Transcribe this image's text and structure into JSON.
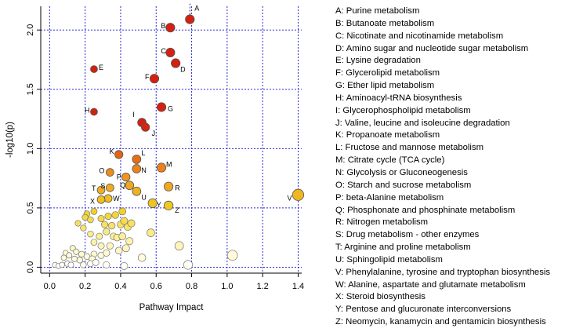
{
  "chart_data": {
    "type": "scatter",
    "xlabel": "Pathway Impact",
    "ylabel": "-log10(p)",
    "xlim": [
      -0.05,
      1.42
    ],
    "ylim": [
      -0.05,
      2.2
    ],
    "xticks": [
      0.0,
      0.2,
      0.4,
      0.6,
      0.8,
      1.0,
      1.2,
      1.4
    ],
    "xtick_labels": [
      "0.0",
      "0.2",
      "0.4",
      "0.6",
      "0.8",
      "1.0",
      "1.2",
      "1.4"
    ],
    "yticks": [
      0.0,
      0.5,
      1.0,
      1.5,
      2.0
    ],
    "ytick_labels": [
      "0.0",
      "0.5",
      "1.0",
      "1.5",
      "2.0"
    ],
    "grid": true,
    "color_scale": [
      "#ffffff",
      "#fff2a0",
      "#f0d020",
      "#f0a020",
      "#e86010",
      "#d42010"
    ],
    "labeled_points": [
      {
        "label": "A",
        "x": 0.79,
        "y": 2.09,
        "size": 0.5
      },
      {
        "label": "B",
        "x": 0.68,
        "y": 2.02,
        "size": 0.5
      },
      {
        "label": "C",
        "x": 0.68,
        "y": 1.81,
        "size": 0.5
      },
      {
        "label": "D",
        "x": 0.71,
        "y": 1.72,
        "size": 0.5
      },
      {
        "label": "E",
        "x": 0.25,
        "y": 1.67,
        "size": 0.25
      },
      {
        "label": "F",
        "x": 0.59,
        "y": 1.59,
        "size": 0.5
      },
      {
        "label": "G",
        "x": 0.63,
        "y": 1.35,
        "size": 0.5
      },
      {
        "label": "H",
        "x": 0.25,
        "y": 1.31,
        "size": 0.25
      },
      {
        "label": "I",
        "x": 0.52,
        "y": 1.22,
        "size": 0.45
      },
      {
        "label": "J",
        "x": 0.54,
        "y": 1.18,
        "size": 0.4
      },
      {
        "label": "K",
        "x": 0.39,
        "y": 0.95,
        "size": 0.4
      },
      {
        "label": "L",
        "x": 0.49,
        "y": 0.91,
        "size": 0.45
      },
      {
        "label": "M",
        "x": 0.63,
        "y": 0.84,
        "size": 0.5
      },
      {
        "label": "N",
        "x": 0.49,
        "y": 0.83,
        "size": 0.45
      },
      {
        "label": "O",
        "x": 0.34,
        "y": 0.8,
        "size": 0.35
      },
      {
        "label": "P",
        "x": 0.43,
        "y": 0.76,
        "size": 0.4
      },
      {
        "label": "Q",
        "x": 0.45,
        "y": 0.69,
        "size": 0.45
      },
      {
        "label": "R",
        "x": 0.67,
        "y": 0.68,
        "size": 0.5
      },
      {
        "label": "S",
        "x": 0.34,
        "y": 0.67,
        "size": 0.35
      },
      {
        "label": "T",
        "x": 0.29,
        "y": 0.65,
        "size": 0.35
      },
      {
        "label": "U",
        "x": 0.49,
        "y": 0.64,
        "size": 0.45
      },
      {
        "label": "V",
        "x": 1.4,
        "y": 0.61,
        "size": 0.8
      },
      {
        "label": "W",
        "x": 0.33,
        "y": 0.58,
        "size": 0.35
      },
      {
        "label": "X",
        "x": 0.29,
        "y": 0.57,
        "size": 0.35
      },
      {
        "label": "Y",
        "x": 0.58,
        "y": 0.54,
        "size": 0.5
      },
      {
        "label": "Z",
        "x": 0.67,
        "y": 0.52,
        "size": 0.5
      }
    ],
    "unlabeled_points": [
      {
        "x": 0.16,
        "y": 0.37
      },
      {
        "x": 0.21,
        "y": 0.45
      },
      {
        "x": 0.25,
        "y": 0.47
      },
      {
        "x": 0.29,
        "y": 0.41
      },
      {
        "x": 0.33,
        "y": 0.43
      },
      {
        "x": 0.37,
        "y": 0.44
      },
      {
        "x": 0.41,
        "y": 0.47
      },
      {
        "x": 0.2,
        "y": 0.42
      },
      {
        "x": 0.23,
        "y": 0.4
      },
      {
        "x": 0.31,
        "y": 0.36
      },
      {
        "x": 0.35,
        "y": 0.35
      },
      {
        "x": 0.4,
        "y": 0.36
      },
      {
        "x": 0.44,
        "y": 0.34
      },
      {
        "x": 0.46,
        "y": 0.37
      },
      {
        "x": 0.42,
        "y": 0.39
      },
      {
        "x": 0.19,
        "y": 0.33
      },
      {
        "x": 0.23,
        "y": 0.28
      },
      {
        "x": 0.28,
        "y": 0.26
      },
      {
        "x": 0.32,
        "y": 0.3
      },
      {
        "x": 0.36,
        "y": 0.26
      },
      {
        "x": 0.38,
        "y": 0.25
      },
      {
        "x": 0.41,
        "y": 0.26
      },
      {
        "x": 0.45,
        "y": 0.22
      },
      {
        "x": 0.57,
        "y": 0.29
      },
      {
        "x": 0.25,
        "y": 0.21
      },
      {
        "x": 0.29,
        "y": 0.18
      },
      {
        "x": 0.34,
        "y": 0.18
      },
      {
        "x": 0.39,
        "y": 0.14
      },
      {
        "x": 0.43,
        "y": 0.16
      },
      {
        "x": 0.73,
        "y": 0.18
      },
      {
        "x": 0.13,
        "y": 0.16
      },
      {
        "x": 0.15,
        "y": 0.13
      },
      {
        "x": 0.18,
        "y": 0.11
      },
      {
        "x": 0.09,
        "y": 0.12
      },
      {
        "x": 0.11,
        "y": 0.1
      },
      {
        "x": 0.21,
        "y": 0.09
      },
      {
        "x": 0.25,
        "y": 0.11
      },
      {
        "x": 0.29,
        "y": 0.1
      },
      {
        "x": 0.32,
        "y": 0.12
      },
      {
        "x": 0.08,
        "y": 0.08
      },
      {
        "x": 0.14,
        "y": 0.07
      },
      {
        "x": 0.17,
        "y": 0.06
      },
      {
        "x": 0.24,
        "y": 0.07
      },
      {
        "x": 0.52,
        "y": 0.08
      },
      {
        "x": 1.03,
        "y": 0.1
      },
      {
        "x": 0.03,
        "y": 0.02
      },
      {
        "x": 0.05,
        "y": 0.01
      },
      {
        "x": 0.07,
        "y": 0.02
      },
      {
        "x": 0.1,
        "y": 0.03
      },
      {
        "x": 0.12,
        "y": 0.02
      },
      {
        "x": 0.19,
        "y": 0.02
      },
      {
        "x": 0.23,
        "y": 0.03
      },
      {
        "x": 0.26,
        "y": 0.04
      },
      {
        "x": 0.32,
        "y": 0.02
      },
      {
        "x": 0.42,
        "y": 0.01
      },
      {
        "x": 0.78,
        "y": 0.02
      }
    ],
    "legend": [
      "A: Purine metabolism",
      "B: Butanoate metabolism",
      "C: Nicotinate and nicotinamide metabolism",
      "D: Amino sugar and nucleotide sugar metabolism",
      "E: Lysine degradation",
      "F: Glycerolipid metabolism",
      "G: Ether lipid metabolism",
      "H: Aminoacyl-tRNA biosynthesis",
      "I: Glycerophospholipid metabolism",
      "J: Valine, leucine and isoleucine degradation",
      "K: Propanoate metabolism",
      "L: Fructose and mannose metabolism",
      "M: Citrate cycle (TCA cycle)",
      "N: Glycolysis or Gluconeogenesis",
      "O: Starch and sucrose metabolism",
      "P: beta-Alanine metabolism",
      "Q: Phosphonate and phosphinate metabolism",
      "R: Nitrogen metabolism",
      "S: Drug metabolism - other enzymes",
      "T: Arginine and proline metabolism",
      "U: Sphingolipid metabolism",
      "V: Phenylalanine, tyrosine and tryptophan biosynthesis",
      "W: Alanine, aspartate and glutamate metabolism",
      "X: Steroid biosynthesis",
      "Y: Pentose and glucuronate interconversions",
      "Z: Neomycin, kanamycin and gentamicin biosynthesis"
    ]
  }
}
